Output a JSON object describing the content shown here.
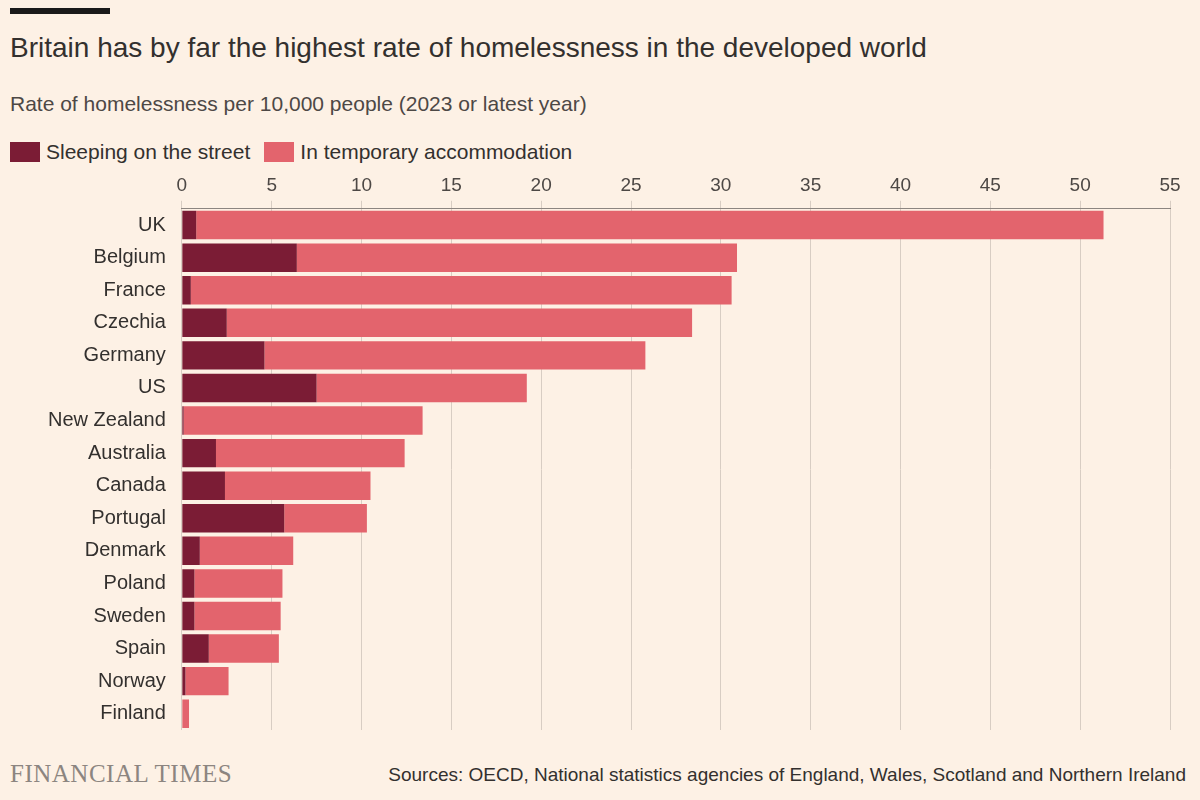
{
  "chart_data": {
    "type": "bar",
    "orientation": "horizontal",
    "stacked": true,
    "title": "Britain has by far the highest rate of homelessness in the developed world",
    "subtitle": "Rate of homelessness per 10,000 people (2023 or latest year)",
    "categories": [
      "UK",
      "Belgium",
      "France",
      "Czechia",
      "Germany",
      "US",
      "New Zealand",
      "Australia",
      "Canada",
      "Portugal",
      "Denmark",
      "Poland",
      "Sweden",
      "Spain",
      "Norway",
      "Finland"
    ],
    "series": [
      {
        "name": "Sleeping on the street",
        "color": "#7b1c35",
        "values": [
          0.8,
          6.4,
          0.5,
          2.5,
          4.6,
          7.5,
          0.1,
          1.9,
          2.4,
          5.7,
          1.0,
          0.7,
          0.7,
          1.5,
          0.2,
          0.0
        ]
      },
      {
        "name": "In temporary accommodation",
        "color": "#e3646d",
        "values": [
          50.5,
          24.5,
          30.1,
          25.9,
          21.2,
          11.7,
          13.3,
          10.5,
          8.1,
          4.6,
          5.2,
          4.9,
          4.8,
          3.9,
          2.4,
          0.4
        ]
      }
    ],
    "xlim": [
      0,
      55
    ],
    "xticks": [
      0,
      5,
      10,
      15,
      20,
      25,
      30,
      35,
      40,
      45,
      50,
      55
    ],
    "grid": true,
    "legend": "top-left",
    "source": "Sources: OECD, National statistics agencies of England, Wales, Scotland and Northern Ireland",
    "brand": "FINANCIAL TIMES"
  }
}
